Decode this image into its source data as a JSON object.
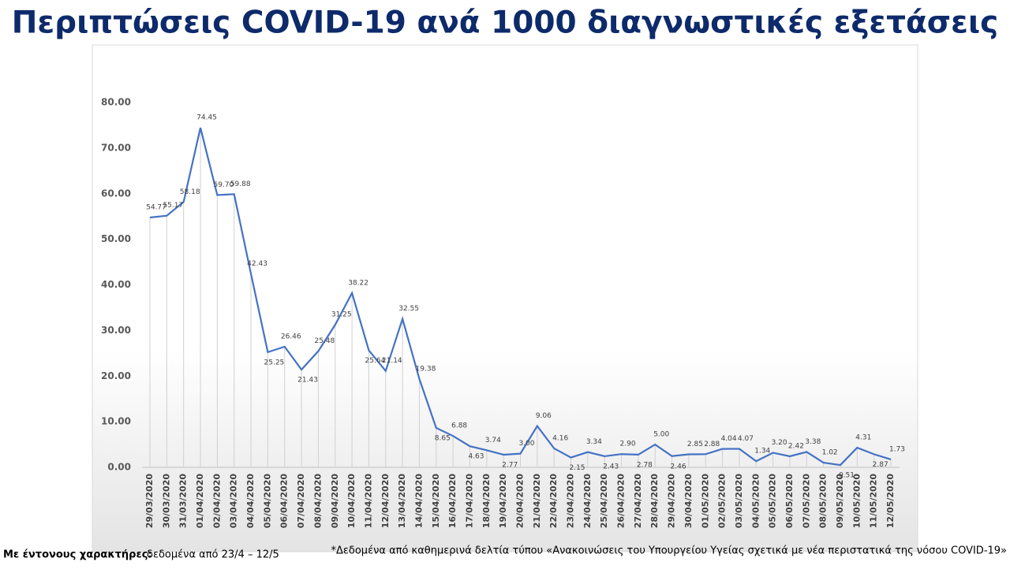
{
  "chart_data": {
    "type": "line",
    "title": "Περιπτώσεις COVID-19 ανά 1000 διαγνωστικές εξετάσεις",
    "categories": [
      "29/03/2020",
      "30/03/2020",
      "31/03/2020",
      "01/04/2020",
      "02/04/2020",
      "03/04/2020",
      "04/04/2020",
      "05/04/2020",
      "06/04/2020",
      "07/04/2020",
      "08/04/2020",
      "09/04/2020",
      "10/04/2020",
      "11/04/2020",
      "12/04/2020",
      "13/04/2020",
      "14/04/2020",
      "15/04/2020",
      "16/04/2020",
      "17/04/2020",
      "18/04/2020",
      "19/04/2020",
      "20/04/2020",
      "21/04/2020",
      "22/04/2020",
      "23/04/2020",
      "24/04/2020",
      "25/04/2020",
      "26/04/2020",
      "27/04/2020",
      "28/04/2020",
      "29/04/2020",
      "30/04/2020",
      "01/05/2020",
      "02/05/2020",
      "03/05/2020",
      "04/05/2020",
      "05/05/2020",
      "06/05/2020",
      "07/05/2020",
      "08/05/2020",
      "09/05/2020",
      "10/05/2020",
      "11/05/2020",
      "12/05/2020"
    ],
    "values": [
      54.77,
      55.17,
      58.18,
      74.45,
      59.7,
      59.88,
      42.43,
      25.25,
      26.46,
      21.43,
      25.48,
      31.25,
      38.22,
      25.64,
      21.14,
      32.55,
      19.38,
      8.65,
      6.88,
      4.63,
      3.74,
      2.77,
      3.0,
      9.06,
      4.16,
      2.15,
      3.34,
      2.43,
      2.9,
      2.78,
      5.0,
      2.46,
      2.85,
      2.88,
      4.04,
      4.07,
      1.34,
      3.2,
      2.42,
      3.38,
      1.02,
      0.51,
      4.31,
      2.87,
      1.73
    ],
    "value_labels": [
      "54.77",
      "55.17",
      "58.18",
      "74.45",
      "59.70",
      "59.88",
      "42.43",
      "25.25",
      "26.46",
      "21.43",
      "25.48",
      "31.25",
      "38.22",
      "25.64",
      "21.14",
      "32.55",
      "19.38",
      "8.65",
      "6.88",
      "4.63",
      "3.74",
      "2.77",
      "3.00",
      "9.06",
      "4.16",
      "2.15",
      "3.34",
      "2.43",
      "2.90",
      "2.78",
      "5.00",
      "2.46",
      "2.85",
      "2.88",
      "4.04",
      "4.07",
      "1.34",
      "3.20",
      "2.42",
      "3.38",
      "1.02",
      "0.51",
      "4.31",
      "2.87",
      "1.73"
    ],
    "color": "#4472c4",
    "ylim": [
      0,
      80
    ],
    "yticks": [
      {
        "value": 0,
        "label": "0.00"
      },
      {
        "value": 10,
        "label": "10.00"
      },
      {
        "value": 20,
        "label": "20.00"
      },
      {
        "value": 30,
        "label": "30.00"
      },
      {
        "value": 40,
        "label": "40.00"
      },
      {
        "value": 50,
        "label": "50.00"
      },
      {
        "value": 60,
        "label": "60.00"
      },
      {
        "value": 70,
        "label": "70.00"
      },
      {
        "value": 80,
        "label": "80.00"
      }
    ],
    "footnote_bold": "Με έντονους χαρακτήρες:",
    "footnote_text": "δεδομένα από 23/4 – 12/5",
    "source": "*Δεδομένα από καθημερινά δελτία τύπου «Ανακοινώσεις του Υπουργείου Υγείας σχετικά με νέα περιστατικά της νόσου COVID-19»"
  }
}
